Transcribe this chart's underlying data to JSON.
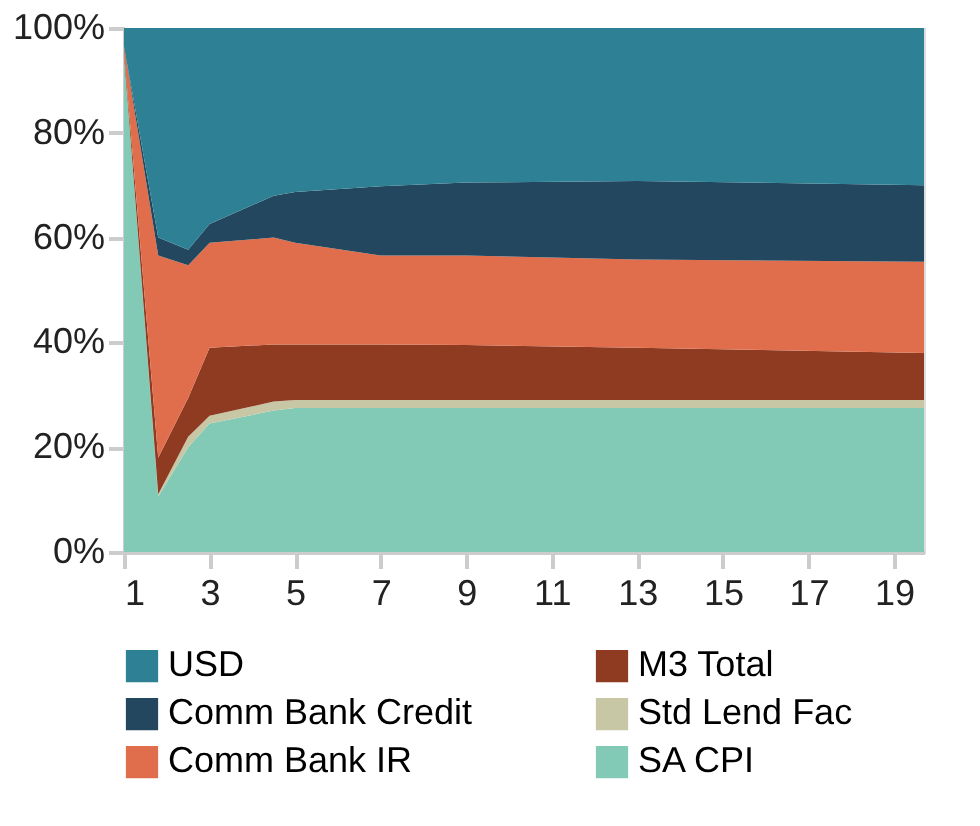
{
  "chart_data": {
    "type": "area",
    "stacked": true,
    "x": [
      1,
      1.8,
      2.5,
      3,
      4.5,
      5,
      7,
      9,
      13,
      19.7
    ],
    "xlim": [
      1,
      19.7
    ],
    "xticks": [
      1,
      3,
      5,
      7,
      9,
      11,
      13,
      15,
      17,
      19
    ],
    "ylim": [
      0,
      100
    ],
    "yticks": [
      {
        "value": 0,
        "label": "0%"
      },
      {
        "value": 20,
        "label": "20%"
      },
      {
        "value": 40,
        "label": "40%"
      },
      {
        "value": 60,
        "label": "60%"
      },
      {
        "value": 80,
        "label": "80%"
      },
      {
        "value": 100,
        "label": "100%"
      }
    ],
    "grid": false,
    "legend": "bottom",
    "series": [
      {
        "name": "SA CPI",
        "color": "#82cab5",
        "values": [
          95,
          10.6,
          20,
          24.5,
          27,
          27.5,
          27.5,
          27.5,
          27.5,
          27.5
        ]
      },
      {
        "name": "Std Lend Fac",
        "color": "#c7c7a6",
        "values": [
          0,
          0.4,
          2,
          1.5,
          1.7,
          1.5,
          1.5,
          1.5,
          1.5,
          1.5
        ]
      },
      {
        "name": "M3 Total",
        "color": "#8e3b22",
        "values": [
          0.5,
          7,
          7.4,
          13,
          10.9,
          10.6,
          10.6,
          10.5,
          10,
          9
        ]
      },
      {
        "name": "Comm Bank IR",
        "color": "#e06e4c",
        "values": [
          1,
          38.6,
          25.3,
          20,
          20.4,
          19.4,
          17,
          17.1,
          16.8,
          17.4
        ]
      },
      {
        "name": "Comm Bank Credit",
        "color": "#22475e",
        "values": [
          0,
          3.4,
          3,
          3.6,
          8,
          9.7,
          13.2,
          13.9,
          15,
          14.6
        ]
      },
      {
        "name": "USD",
        "color": "#2e8095",
        "values": [
          3.5,
          40,
          42.3,
          37.4,
          32,
          31.3,
          30.2,
          29.5,
          29.2,
          30
        ]
      }
    ]
  }
}
